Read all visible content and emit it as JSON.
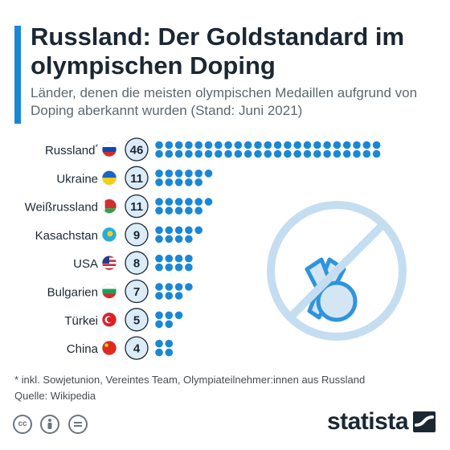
{
  "title": "Russland: Der Goldstandard im olympischen Doping",
  "subtitle": "Länder, denen die meisten olympischen Medaillen aufgrund von Doping aberkannt wurden (Stand: Juni 2021)",
  "footnote": "* inkl. Sowjetunion, Vereintes Team, Olympiateilnehmer:innen aus Russland",
  "source": "Quelle: Wikipedia",
  "brand": "statista",
  "colors": {
    "accent": "#1a87d5",
    "dot": "#1a87d5",
    "badge_fill": "#dcebf8",
    "text": "#1b2733",
    "icon_light": "#cde2f3"
  },
  "icons": [
    "creative-commons-icon",
    "attribution-icon",
    "no-derivatives-icon",
    "no-doping-medal-icon"
  ],
  "chart_data": {
    "type": "bar",
    "categories": [
      "Russland*",
      "Ukraine",
      "Weißrussland",
      "Kasachstan",
      "USA",
      "Bulgarien",
      "Türkei",
      "China"
    ],
    "values": [
      46,
      11,
      11,
      9,
      8,
      7,
      5,
      4
    ],
    "flags": [
      "flag-russia",
      "flag-ukraine",
      "flag-belarus",
      "flag-kazakhstan",
      "flag-usa",
      "flag-bulgaria",
      "flag-turkey",
      "flag-china"
    ],
    "encoding": "dots"
  }
}
